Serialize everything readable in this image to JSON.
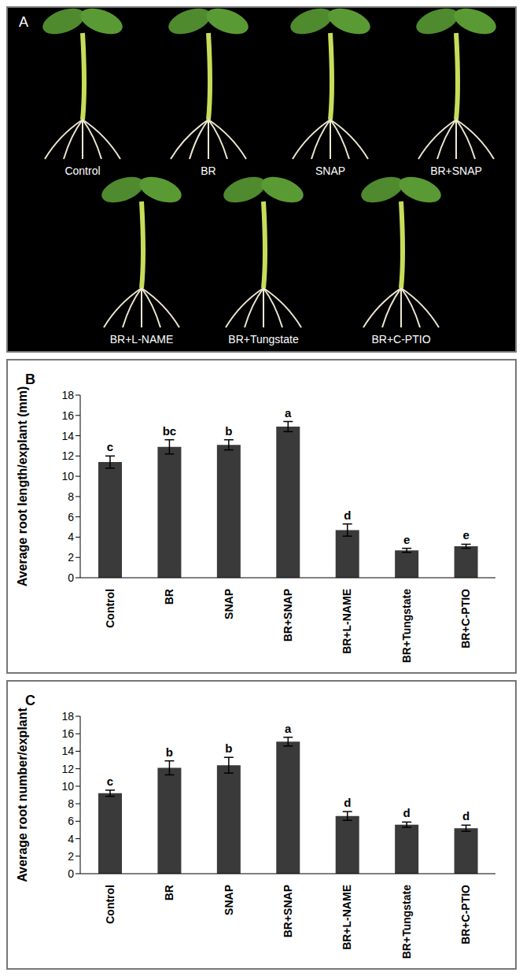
{
  "panel_a": {
    "label": "A",
    "captions": [
      "Control",
      "BR",
      "SNAP",
      "BR+SNAP",
      "BR+L-NAME",
      "BR+Tungstate",
      "BR+C-PTIO"
    ]
  },
  "chart_data": [
    {
      "type": "bar",
      "title": "B",
      "y_label": "Average root length/explant (mm)",
      "categories": [
        "Control",
        "BR",
        "SNAP",
        "BR+SNAP",
        "BR+L-NAME",
        "BR+Tungstate",
        "BR+C-PTIO"
      ],
      "values": [
        11.4,
        12.9,
        13.1,
        14.9,
        4.7,
        2.7,
        3.1
      ],
      "error": [
        0.6,
        0.7,
        0.5,
        0.5,
        0.6,
        0.2,
        0.2
      ],
      "annotations": [
        "c",
        "bc",
        "b",
        "a",
        "d",
        "e",
        "e"
      ],
      "color": "#3a3a3a",
      "ylim": [
        0,
        18
      ],
      "yticks": [
        0,
        2,
        4,
        6,
        8,
        10,
        12,
        14,
        16,
        18
      ],
      "grid": false
    },
    {
      "type": "bar",
      "title": "C",
      "y_label": "Average root number/explant",
      "categories": [
        "Control",
        "BR",
        "SNAP",
        "BR+SNAP",
        "BR+L-NAME",
        "BR+Tungstate",
        "BR+C-PTIO"
      ],
      "values": [
        9.2,
        12.1,
        12.4,
        15.1,
        6.6,
        5.6,
        5.2
      ],
      "error": [
        0.35,
        0.8,
        0.9,
        0.5,
        0.5,
        0.3,
        0.35
      ],
      "annotations": [
        "c",
        "b",
        "b",
        "a",
        "d",
        "d",
        "d"
      ],
      "color": "#3a3a3a",
      "ylim": [
        0,
        18
      ],
      "yticks": [
        0,
        2,
        4,
        6,
        8,
        10,
        12,
        14,
        16,
        18
      ],
      "grid": false
    }
  ]
}
